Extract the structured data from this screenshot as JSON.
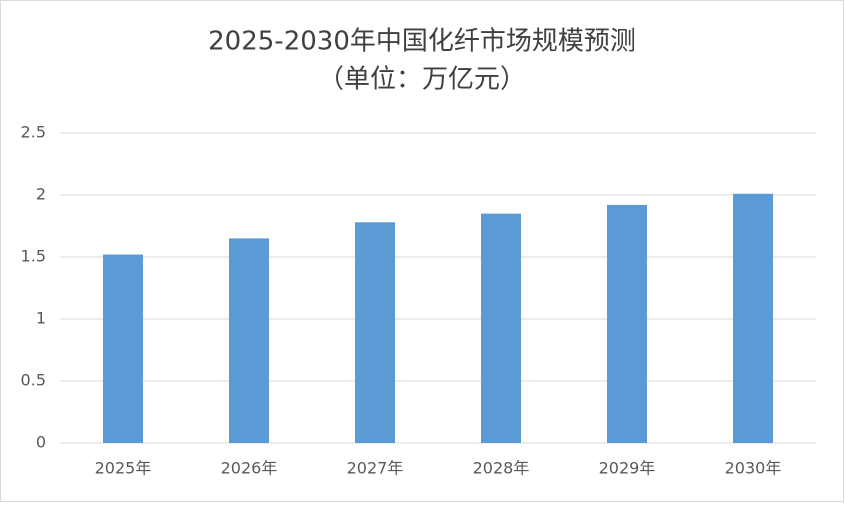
{
  "chart_data": {
    "type": "bar",
    "title": "2025-2030年中国化纤市场规模预测",
    "subtitle": "（单位：万亿元）",
    "categories": [
      "2025年",
      "2026年",
      "2027年",
      "2028年",
      "2029年",
      "2030年"
    ],
    "values": [
      1.52,
      1.65,
      1.78,
      1.85,
      1.92,
      2.01
    ],
    "color": "#5b9bd5",
    "ylim": [
      0,
      2.5
    ],
    "yticks": [
      0,
      0.5,
      1,
      1.5,
      2,
      2.5
    ],
    "grid": true
  }
}
